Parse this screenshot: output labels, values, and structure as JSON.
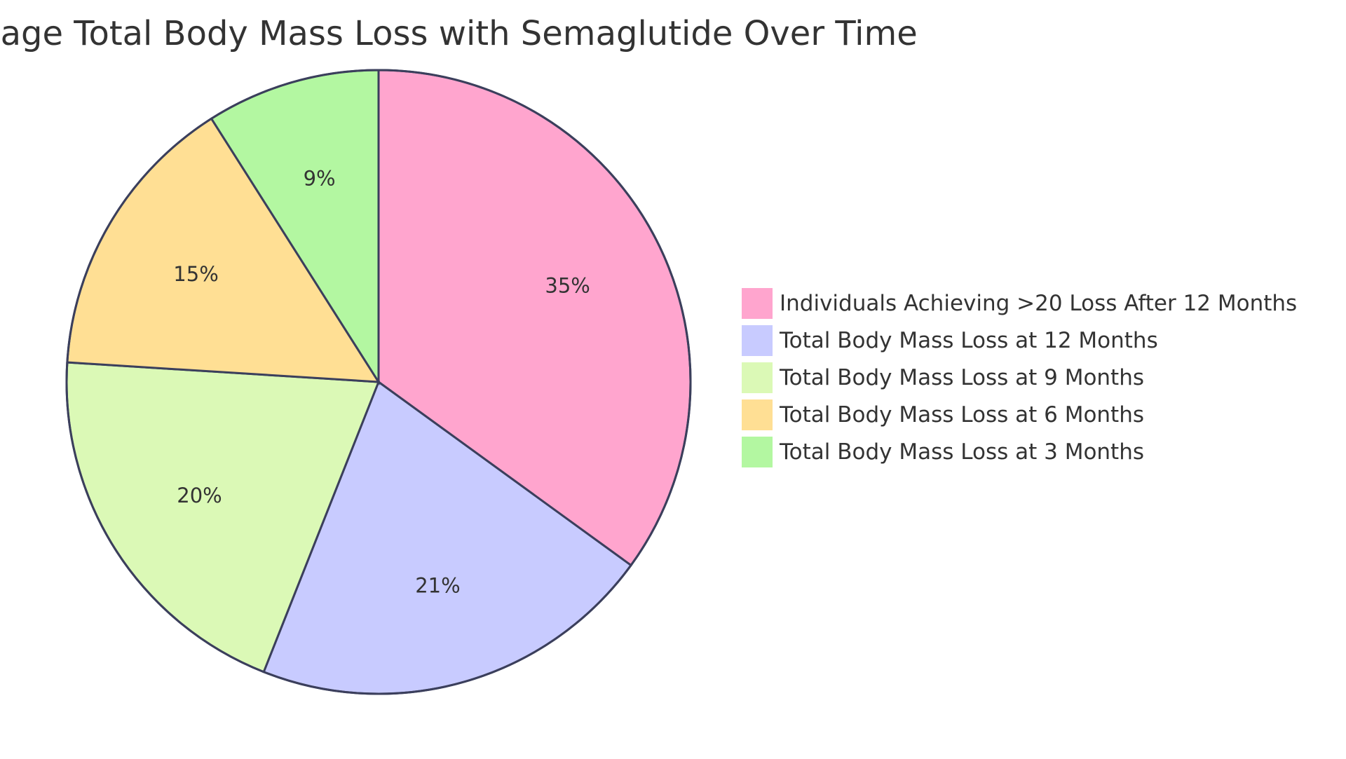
{
  "chart_data": {
    "type": "pie",
    "title": "Percentage Total Body Mass Loss with Semaglutide Over Time",
    "slices": [
      {
        "label": "Individuals Achieving >20 Loss After 12 Months",
        "value": 35,
        "display": "35%",
        "color": "#FFA5CE"
      },
      {
        "label": "Total Body Mass Loss at 12 Months",
        "value": 21,
        "display": "21%",
        "color": "#C8CBFF"
      },
      {
        "label": "Total Body Mass Loss at 9 Months",
        "value": 20,
        "display": "20%",
        "color": "#DBF9B6"
      },
      {
        "label": "Total Body Mass Loss at 6 Months",
        "value": 15,
        "display": "15%",
        "color": "#FFDF94"
      },
      {
        "label": "Total Body Mass Loss at 3 Months",
        "value": 9,
        "display": "9%",
        "color": "#B3F7A1"
      }
    ],
    "legend": "right",
    "stroke_color": "#3B3F5C"
  }
}
